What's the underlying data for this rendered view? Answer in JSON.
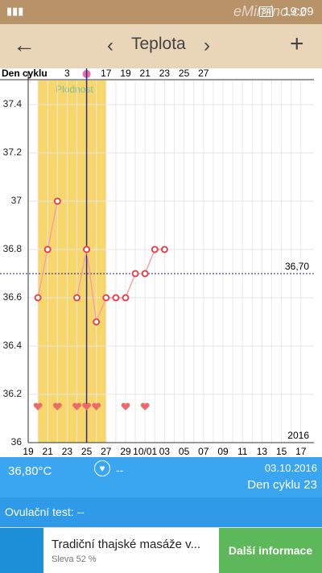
{
  "status_bar": {
    "battery": "34",
    "time": "19:09",
    "watermark": "eMimino.cz"
  },
  "header": {
    "title": "Teplota"
  },
  "chart_data": {
    "type": "line",
    "cycle_label": "Den cyklu",
    "categories": [
      "19",
      null,
      "21",
      null,
      "23",
      null,
      "25",
      null,
      "27",
      null,
      "29",
      null,
      "10/01",
      null,
      "03",
      null,
      "05",
      null,
      "07",
      null,
      "09",
      null,
      "11",
      null,
      "13",
      null,
      "15",
      null,
      "17"
    ],
    "cycle_days": [
      null,
      null,
      null,
      null,
      "3",
      null,
      null,
      null,
      "17",
      null,
      "19",
      null,
      "21",
      null,
      "23",
      null,
      "25",
      null,
      "27",
      null,
      null,
      null,
      null,
      null,
      null,
      null,
      null,
      null,
      null
    ],
    "series": [
      {
        "color": "#f4a3a8",
        "marker_color": "#e0454f",
        "values": [
          null,
          36.6,
          36.8,
          37.0,
          null,
          36.6,
          36.8,
          36.5,
          36.6,
          36.6,
          36.6,
          36.7,
          36.7,
          36.8,
          36.8,
          null,
          null,
          null,
          null,
          null,
          null,
          null,
          null,
          null,
          null,
          null,
          null,
          null,
          null
        ]
      }
    ],
    "intercourse": [
      false,
      true,
      false,
      true,
      false,
      true,
      true,
      true,
      false,
      false,
      true,
      false,
      true,
      false,
      false,
      false,
      false,
      false,
      false,
      false,
      false,
      false,
      false,
      false,
      false,
      false,
      false,
      false,
      false
    ],
    "fertile": {
      "label": "Plodnost",
      "start": 1,
      "end": 8,
      "color": "#f7d66a"
    },
    "ovulation_index": 6,
    "coverline": {
      "value": 36.7,
      "label": "36,70"
    },
    "year": "2016",
    "ylim": [
      36,
      37.5
    ],
    "yticks": [
      36,
      36.2,
      36.4,
      36.6,
      36.8,
      37,
      37.2,
      37.4
    ],
    "grid": true
  },
  "info": {
    "temperature": "36,80°C",
    "heart": "--",
    "date": "03.10.2016",
    "cycle_day": "Den cyklu 23"
  },
  "ovulation": {
    "label": "Ovulační test: --"
  },
  "ad": {
    "title": "Tradiční thajské masáže v...",
    "subtitle": "Sleva 52 %",
    "button": "Další informace"
  }
}
